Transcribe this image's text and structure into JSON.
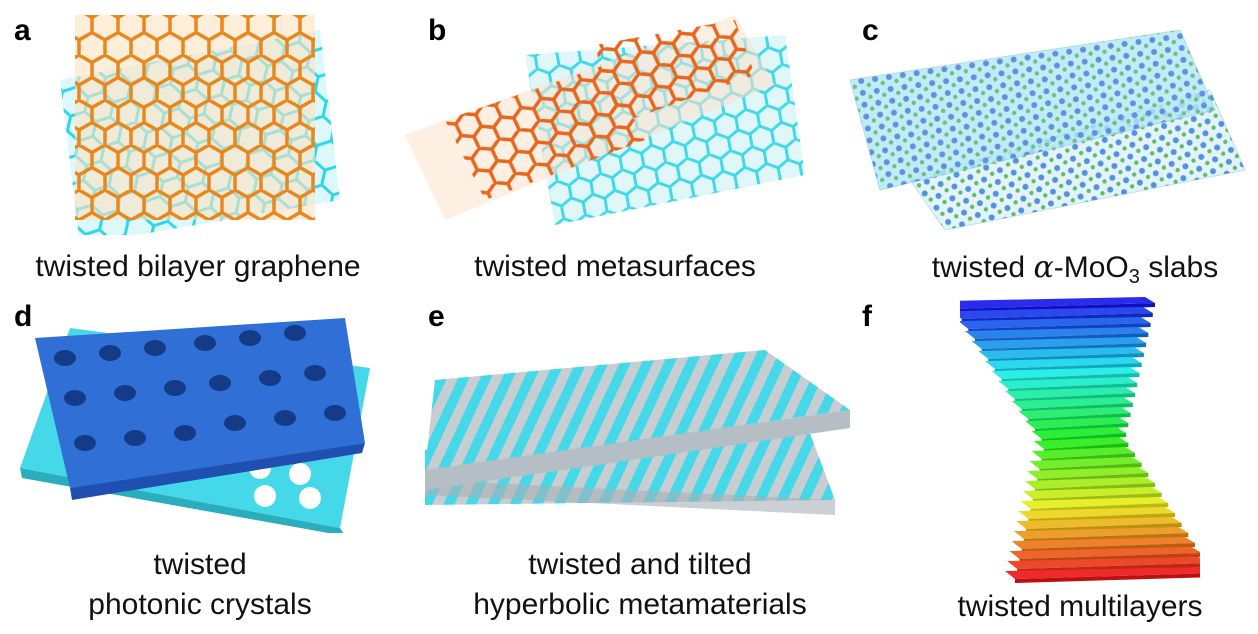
{
  "panels": [
    {
      "letter": "a",
      "caption": "twisted bilayer graphene"
    },
    {
      "letter": "b",
      "caption": "twisted metasurfaces"
    },
    {
      "letter": "c",
      "caption_prefix": "twisted ",
      "caption_alpha": "α",
      "caption_mid": "-MoO",
      "caption_sub": "3",
      "caption_suffix": " slabs"
    },
    {
      "letter": "d",
      "caption_line1": "twisted",
      "caption_line2": "photonic crystals"
    },
    {
      "letter": "e",
      "caption_line1": "twisted and tilted",
      "caption_line2": "hyperbolic metamaterials"
    },
    {
      "letter": "f",
      "caption": "twisted multilayers"
    }
  ],
  "colors": {
    "graphene_top": "#e8871e",
    "graphene_bottom": "#2fd6e8",
    "slab_blue": "#2f6fd6",
    "slab_cyan": "#45d8e8",
    "stripe_gray": "#c8cdd2"
  }
}
